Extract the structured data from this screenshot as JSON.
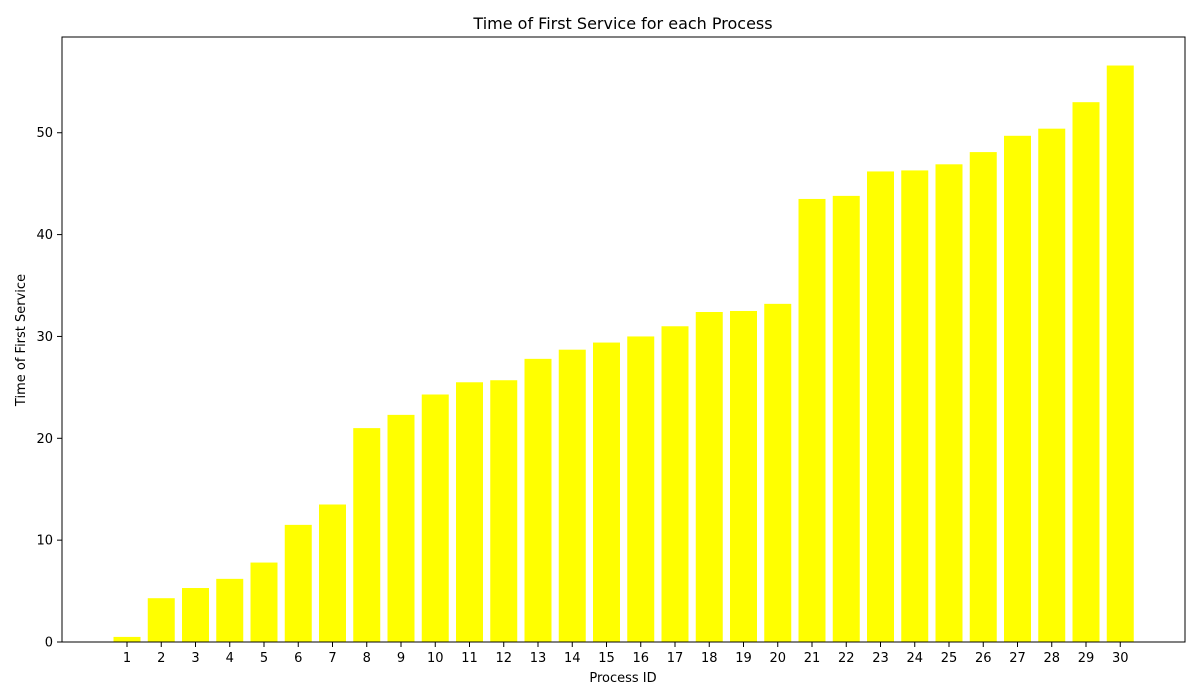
{
  "chart_data": {
    "type": "bar",
    "title": "Time of First Service for each Process",
    "xlabel": "Process ID",
    "ylabel": "Time of First Service",
    "categories": [
      "1",
      "2",
      "3",
      "4",
      "5",
      "6",
      "7",
      "8",
      "9",
      "10",
      "11",
      "12",
      "13",
      "14",
      "15",
      "16",
      "17",
      "18",
      "19",
      "20",
      "21",
      "22",
      "23",
      "24",
      "25",
      "26",
      "27",
      "28",
      "29",
      "30"
    ],
    "values": [
      0.5,
      4.3,
      5.3,
      6.2,
      7.8,
      11.5,
      13.5,
      21.0,
      22.3,
      24.3,
      25.5,
      25.7,
      27.8,
      28.7,
      29.4,
      30.0,
      31.0,
      32.4,
      32.5,
      33.2,
      43.5,
      43.8,
      46.2,
      46.3,
      46.9,
      48.1,
      49.7,
      50.4,
      53.0,
      56.6
    ],
    "yticks": [
      0,
      10,
      20,
      30,
      40,
      50
    ],
    "ylim": [
      0,
      59.4
    ],
    "bar_color": "#ffff00",
    "grid": false
  }
}
